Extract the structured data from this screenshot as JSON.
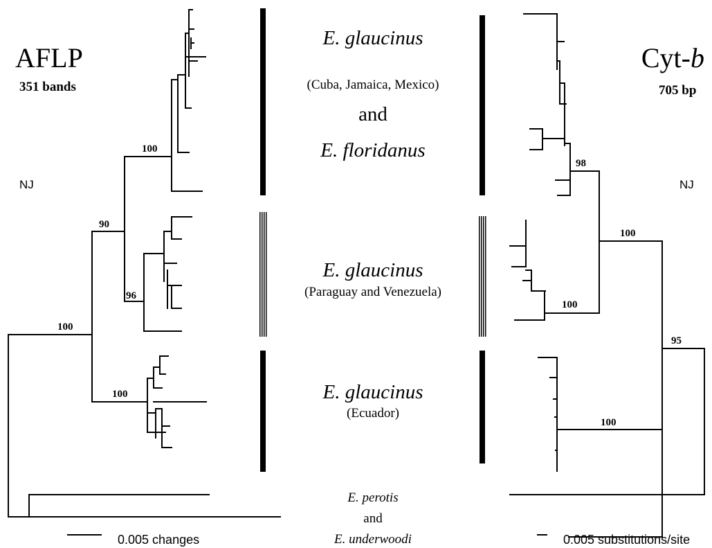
{
  "left_tree": {
    "title": "AFLP",
    "subtitle": "351 bands",
    "method": "NJ",
    "scale_label": "0.005 changes",
    "supports": [
      "100",
      "90",
      "96",
      "100",
      "100"
    ]
  },
  "right_tree": {
    "title_main": "Cyt-",
    "title_italic": "b",
    "subtitle": "705 bp",
    "method": "NJ",
    "scale_label": "0.005 substitutions/site",
    "supports": [
      "98",
      "100",
      "100",
      "95",
      "100"
    ]
  },
  "clades": {
    "clade1": {
      "name1": "E. glaucinus",
      "region": "(Cuba, Jamaica, Mexico)",
      "connector": "and",
      "name2": "E. floridanus"
    },
    "clade2": {
      "name": "E. glaucinus",
      "region": "(Paraguay and Venezuela)"
    },
    "clade3": {
      "name": "E. glaucinus",
      "region": "(Ecuador)"
    },
    "outgroup": {
      "name1": "E. perotis",
      "connector": "and",
      "name2": "E. underwoodi"
    }
  }
}
